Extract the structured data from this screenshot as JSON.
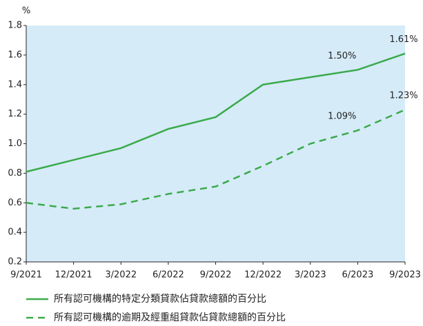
{
  "chart_data": {
    "type": "line",
    "y_label": "%",
    "categories": [
      "9/2021",
      "12/2021",
      "3/2022",
      "6/2022",
      "9/2022",
      "12/2022",
      "3/2023",
      "6/2023",
      "9/2023"
    ],
    "series": [
      {
        "name": "所有認可機構的特定分類貸款佔貸款總額的百分比",
        "color": "#3aaa4a",
        "dashed": false,
        "values": [
          0.81,
          0.89,
          0.97,
          1.1,
          1.18,
          1.4,
          1.45,
          1.5,
          1.61
        ],
        "value_labels": [
          null,
          null,
          null,
          null,
          null,
          null,
          null,
          "1.50%",
          "1.61%"
        ]
      },
      {
        "name": "所有認可機構的逾期及經重組貸款佔貸款總額的百分比",
        "color": "#3aaa4a",
        "dashed": true,
        "values": [
          0.6,
          0.56,
          0.59,
          0.66,
          0.71,
          0.85,
          1.0,
          1.09,
          1.23
        ],
        "value_labels": [
          null,
          null,
          null,
          null,
          null,
          null,
          null,
          "1.09%",
          "1.23%"
        ]
      }
    ],
    "ylim": [
      0.2,
      1.8
    ],
    "yticks": [
      0.2,
      0.4,
      0.6,
      0.8,
      {
        "value": 1,
        "label": "1.0"
      },
      1.2,
      1.4,
      1.6,
      1.8
    ],
    "plot_background": "#d5ebf8",
    "legend": "bottom"
  }
}
